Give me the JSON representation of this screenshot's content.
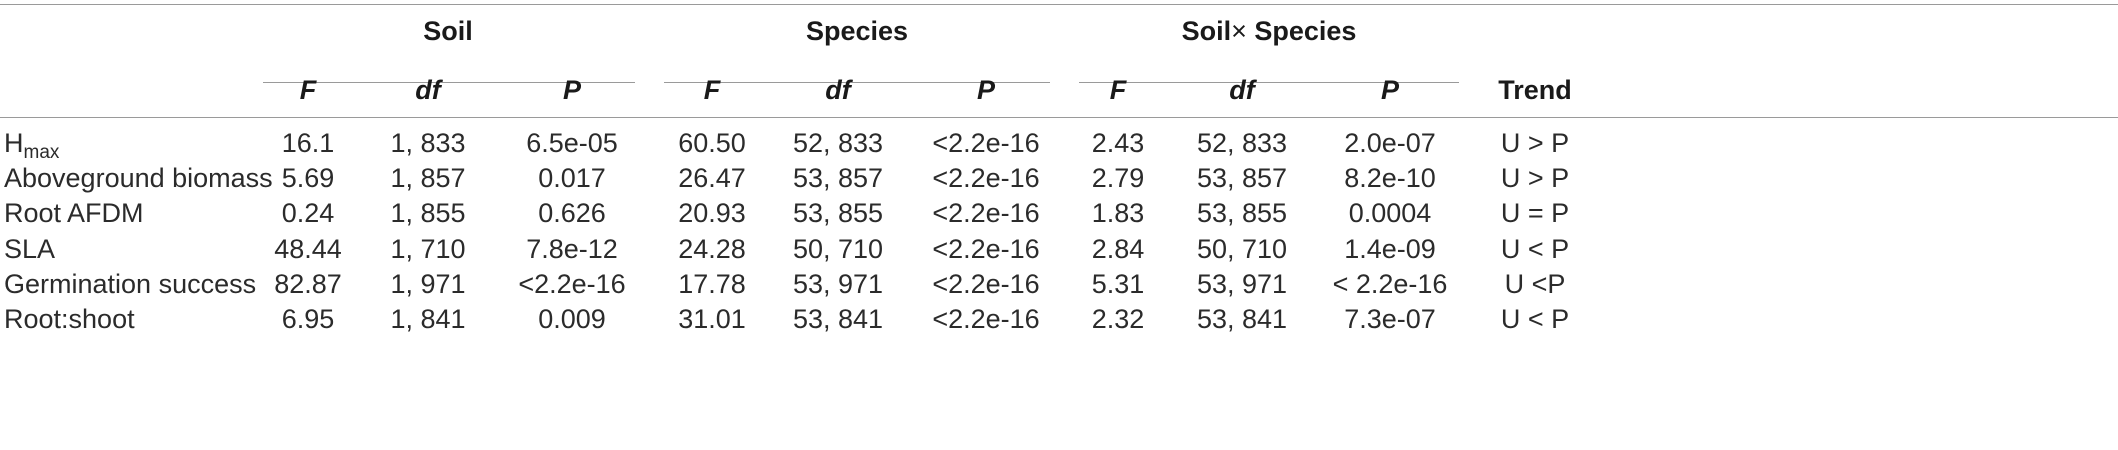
{
  "groups": {
    "soil": "Soil",
    "species": "Species",
    "interaction_prefix": "Soil",
    "interaction_times": "×",
    "interaction_suffix": " Species"
  },
  "columns": {
    "F": "F",
    "df": "df",
    "P": "P",
    "trend": "Trend"
  },
  "rows": [
    {
      "label_main": "H",
      "label_sub": "max",
      "soil": [
        "16.1",
        "1, 833",
        "6.5e-05"
      ],
      "species": [
        "60.50",
        "52, 833",
        "<2.2e-16"
      ],
      "interaction": [
        "2.43",
        "52, 833",
        "2.0e-07"
      ],
      "trend": "U > P"
    },
    {
      "label_main": "Aboveground biomass",
      "label_sub": "",
      "soil": [
        "5.69",
        "1, 857",
        "0.017"
      ],
      "species": [
        "26.47",
        "53, 857",
        "<2.2e-16"
      ],
      "interaction": [
        "2.79",
        "53, 857",
        "8.2e-10"
      ],
      "trend": "U > P"
    },
    {
      "label_main": "Root AFDM",
      "label_sub": "",
      "soil": [
        "0.24",
        "1, 855",
        "0.626"
      ],
      "species": [
        "20.93",
        "53, 855",
        "<2.2e-16"
      ],
      "interaction": [
        "1.83",
        "53, 855",
        "0.0004"
      ],
      "trend": "U = P"
    },
    {
      "label_main": "SLA",
      "label_sub": "",
      "soil": [
        "48.44",
        "1, 710",
        "7.8e-12"
      ],
      "species": [
        "24.28",
        "50, 710",
        "<2.2e-16"
      ],
      "interaction": [
        "2.84",
        "50, 710",
        "1.4e-09"
      ],
      "trend": "U < P"
    },
    {
      "label_main": "Germination success",
      "label_sub": "",
      "soil": [
        "82.87",
        "1, 971",
        "<2.2e-16"
      ],
      "species": [
        "17.78",
        "53, 971",
        "<2.2e-16"
      ],
      "interaction": [
        "5.31",
        "53, 971",
        "< 2.2e-16"
      ],
      "trend": "U <P"
    },
    {
      "label_main": "Root:shoot",
      "label_sub": "",
      "soil": [
        "6.95",
        "1, 841",
        "0.009"
      ],
      "species": [
        "31.01",
        "53, 841",
        "<2.2e-16"
      ],
      "interaction": [
        "2.32",
        "53, 841",
        "7.3e-07"
      ],
      "trend": "U < P"
    }
  ]
}
